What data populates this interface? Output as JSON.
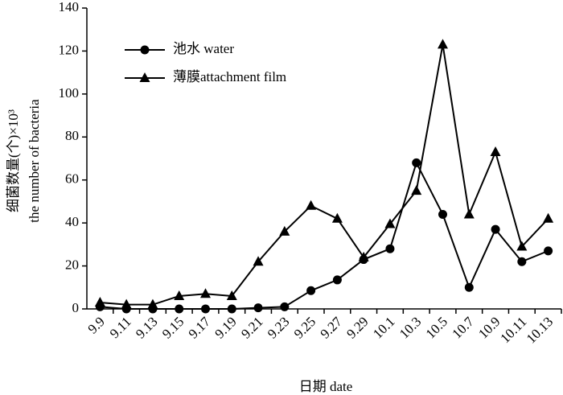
{
  "chart_data": {
    "type": "line",
    "y_label": [
      "细菌数量(个)×10³",
      "the number of bacteria"
    ],
    "x_label": "日期 date",
    "categories": [
      "9.9",
      "9.11",
      "9.13",
      "9.15",
      "9.17",
      "9.19",
      "9.21",
      "9.23",
      "9.25",
      "9.27",
      "9.29",
      "10.1",
      "10.3",
      "10.5",
      "10.7",
      "10.9",
      "10.11",
      "10.13"
    ],
    "series": [
      {
        "name": "池水 water",
        "color": "#000000",
        "marker": "circle",
        "values": [
          1,
          0,
          0,
          0,
          0,
          0,
          0.5,
          1,
          8.5,
          13.5,
          23,
          28,
          68,
          44,
          10,
          37,
          22,
          27
        ]
      },
      {
        "name": "薄膜attachment film",
        "color": "#000000",
        "marker": "triangle",
        "values": [
          3,
          2,
          2,
          6,
          7,
          6,
          22,
          36,
          48,
          42,
          24,
          39.5,
          55,
          123,
          44,
          73,
          29,
          42
        ]
      }
    ],
    "ylim": [
      0,
      140
    ],
    "yticks": [
      0,
      20,
      40,
      60,
      80,
      100,
      120,
      140
    ]
  }
}
